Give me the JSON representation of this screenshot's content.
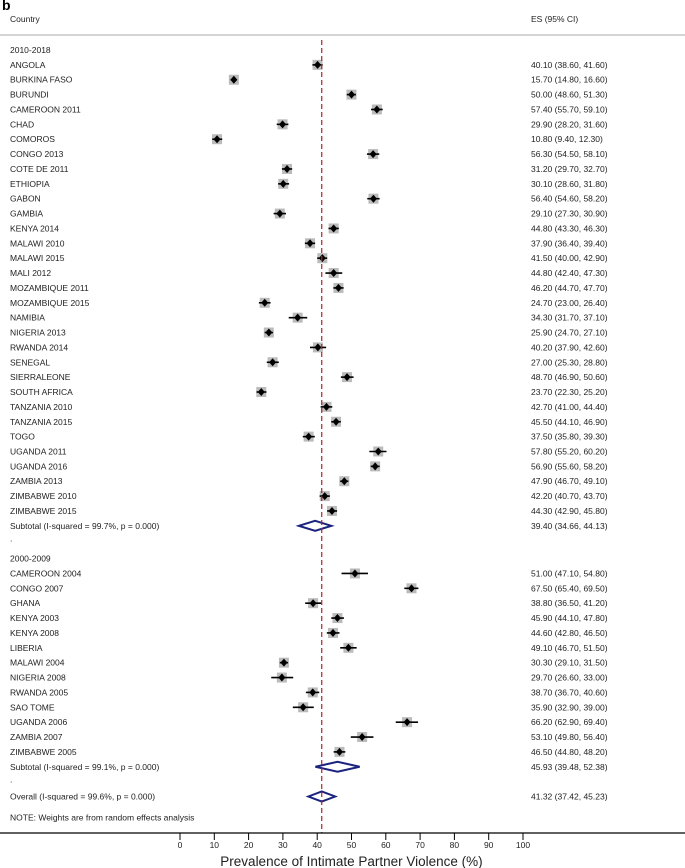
{
  "panel_label": "b",
  "chart_data": {
    "type": "forest",
    "header": {
      "study": "Country",
      "es": "ES (95% CI)"
    },
    "xlabel": "Prevalence of Intimate Partner Violence (%)",
    "xlim": [
      0,
      100
    ],
    "xticks": [
      0,
      10,
      20,
      30,
      40,
      50,
      60,
      70,
      80,
      90,
      100
    ],
    "reference_line": 41.32,
    "groups": [
      {
        "name": "2010-2018",
        "studies": [
          {
            "label": "ANGOLA",
            "es": 40.1,
            "lo": 38.6,
            "hi": 41.6,
            "text": "40.10 (38.60, 41.60)"
          },
          {
            "label": "BURKINA FASO",
            "es": 15.7,
            "lo": 14.8,
            "hi": 16.6,
            "text": "15.70 (14.80, 16.60)"
          },
          {
            "label": "BURUNDI",
            "es": 50.0,
            "lo": 48.6,
            "hi": 51.3,
            "text": "50.00 (48.60, 51.30)"
          },
          {
            "label": "CAMEROON 2011",
            "es": 57.4,
            "lo": 55.7,
            "hi": 59.1,
            "text": "57.40 (55.70, 59.10)"
          },
          {
            "label": "CHAD",
            "es": 29.9,
            "lo": 28.2,
            "hi": 31.6,
            "text": "29.90 (28.20, 31.60)"
          },
          {
            "label": "COMOROS",
            "es": 10.8,
            "lo": 9.4,
            "hi": 12.3,
            "text": "10.80 (9.40, 12.30)"
          },
          {
            "label": "CONGO 2013",
            "es": 56.3,
            "lo": 54.5,
            "hi": 58.1,
            "text": "56.30 (54.50, 58.10)"
          },
          {
            "label": "COTE DE 2011",
            "es": 31.2,
            "lo": 29.7,
            "hi": 32.7,
            "text": "31.20 (29.70, 32.70)"
          },
          {
            "label": "ETHIOPIA",
            "es": 30.1,
            "lo": 28.6,
            "hi": 31.8,
            "text": "30.10 (28.60, 31.80)"
          },
          {
            "label": "GABON",
            "es": 56.4,
            "lo": 54.6,
            "hi": 58.2,
            "text": "56.40 (54.60, 58.20)"
          },
          {
            "label": "GAMBIA",
            "es": 29.1,
            "lo": 27.3,
            "hi": 30.9,
            "text": "29.10 (27.30, 30.90)"
          },
          {
            "label": "KENYA 2014",
            "es": 44.8,
            "lo": 43.3,
            "hi": 46.3,
            "text": "44.80 (43.30, 46.30)"
          },
          {
            "label": "MALAWI 2010",
            "es": 37.9,
            "lo": 36.4,
            "hi": 39.4,
            "text": "37.90 (36.40, 39.40)"
          },
          {
            "label": "MALAWI 2015",
            "es": 41.5,
            "lo": 40.0,
            "hi": 42.9,
            "text": "41.50 (40.00, 42.90)"
          },
          {
            "label": "MALI 2012",
            "es": 44.8,
            "lo": 42.4,
            "hi": 47.3,
            "text": "44.80 (42.40, 47.30)"
          },
          {
            "label": "MOZAMBIQUE 2011",
            "es": 46.2,
            "lo": 44.7,
            "hi": 47.7,
            "text": "46.20 (44.70, 47.70)"
          },
          {
            "label": "MOZAMBIQUE 2015",
            "es": 24.7,
            "lo": 23.0,
            "hi": 26.4,
            "text": "24.70 (23.00, 26.40)"
          },
          {
            "label": "NAMIBIA",
            "es": 34.3,
            "lo": 31.7,
            "hi": 37.1,
            "text": "34.30 (31.70, 37.10)"
          },
          {
            "label": "NIGERIA 2013",
            "es": 25.9,
            "lo": 24.7,
            "hi": 27.1,
            "text": "25.90 (24.70, 27.10)"
          },
          {
            "label": "RWANDA 2014",
            "es": 40.2,
            "lo": 37.9,
            "hi": 42.6,
            "text": "40.20 (37.90, 42.60)"
          },
          {
            "label": "SENEGAL",
            "es": 27.0,
            "lo": 25.3,
            "hi": 28.8,
            "text": "27.00 (25.30, 28.80)"
          },
          {
            "label": "SIERRALEONE",
            "es": 48.7,
            "lo": 46.9,
            "hi": 50.6,
            "text": "48.70 (46.90, 50.60)"
          },
          {
            "label": "SOUTH AFRICA",
            "es": 23.7,
            "lo": 22.3,
            "hi": 25.2,
            "text": "23.70 (22.30, 25.20)"
          },
          {
            "label": "TANZANIA 2010",
            "es": 42.7,
            "lo": 41.0,
            "hi": 44.4,
            "text": "42.70 (41.00, 44.40)"
          },
          {
            "label": "TANZANIA 2015",
            "es": 45.5,
            "lo": 44.1,
            "hi": 46.9,
            "text": "45.50 (44.10, 46.90)"
          },
          {
            "label": "TOGO",
            "es": 37.5,
            "lo": 35.8,
            "hi": 39.3,
            "text": "37.50 (35.80, 39.30)"
          },
          {
            "label": "UGANDA 2011",
            "es": 57.8,
            "lo": 55.2,
            "hi": 60.2,
            "text": "57.80 (55.20, 60.20)"
          },
          {
            "label": "UGANDA 2016",
            "es": 56.9,
            "lo": 55.6,
            "hi": 58.2,
            "text": "56.90 (55.60, 58.20)"
          },
          {
            "label": "ZAMBIA 2013",
            "es": 47.9,
            "lo": 46.7,
            "hi": 49.1,
            "text": "47.90 (46.70, 49.10)"
          },
          {
            "label": "ZIMBABWE 2010",
            "es": 42.2,
            "lo": 40.7,
            "hi": 43.7,
            "text": "42.20 (40.70, 43.70)"
          },
          {
            "label": "ZIMBABWE 2015",
            "es": 44.3,
            "lo": 42.9,
            "hi": 45.8,
            "text": "44.30 (42.90, 45.80)"
          }
        ],
        "subtotal": {
          "label": "Subtotal  (I-squared = 99.7%, p = 0.000)",
          "es": 39.4,
          "lo": 34.66,
          "hi": 44.13,
          "text": "39.40 (34.66, 44.13)"
        }
      },
      {
        "name": "2000-2009",
        "studies": [
          {
            "label": "CAMEROON 2004",
            "es": 51.0,
            "lo": 47.1,
            "hi": 54.8,
            "text": "51.00 (47.10, 54.80)"
          },
          {
            "label": "CONGO 2007",
            "es": 67.5,
            "lo": 65.4,
            "hi": 69.5,
            "text": "67.50 (65.40, 69.50)"
          },
          {
            "label": "GHANA",
            "es": 38.8,
            "lo": 36.5,
            "hi": 41.2,
            "text": "38.80 (36.50, 41.20)"
          },
          {
            "label": "KENYA 2003",
            "es": 45.9,
            "lo": 44.1,
            "hi": 47.8,
            "text": "45.90 (44.10, 47.80)"
          },
          {
            "label": "KENYA 2008",
            "es": 44.6,
            "lo": 42.8,
            "hi": 46.5,
            "text": "44.60 (42.80, 46.50)"
          },
          {
            "label": "LIBERIA",
            "es": 49.1,
            "lo": 46.7,
            "hi": 51.5,
            "text": "49.10 (46.70, 51.50)"
          },
          {
            "label": "MALAWI 2004",
            "es": 30.3,
            "lo": 29.1,
            "hi": 31.5,
            "text": "30.30 (29.10, 31.50)"
          },
          {
            "label": "NIGERIA 2008",
            "es": 29.7,
            "lo": 26.6,
            "hi": 33.0,
            "text": "29.70 (26.60, 33.00)"
          },
          {
            "label": "RWANDA 2005",
            "es": 38.7,
            "lo": 36.7,
            "hi": 40.6,
            "text": "38.70 (36.70, 40.60)"
          },
          {
            "label": "SAO TOME",
            "es": 35.9,
            "lo": 32.9,
            "hi": 39.0,
            "text": "35.90 (32.90, 39.00)"
          },
          {
            "label": "UGANDA 2006",
            "es": 66.2,
            "lo": 62.9,
            "hi": 69.4,
            "text": "66.20 (62.90, 69.40)"
          },
          {
            "label": "ZAMBIA 2007",
            "es": 53.1,
            "lo": 49.8,
            "hi": 56.4,
            "text": "53.10 (49.80, 56.40)"
          },
          {
            "label": "ZIMBABWE 2005",
            "es": 46.5,
            "lo": 44.8,
            "hi": 48.2,
            "text": "46.50 (44.80, 48.20)"
          }
        ],
        "subtotal": {
          "label": "Subtotal  (I-squared = 99.1%, p = 0.000)",
          "es": 45.93,
          "lo": 39.48,
          "hi": 52.38,
          "text": "45.93 (39.48, 52.38)"
        }
      }
    ],
    "overall": {
      "label": "Overall  (I-squared = 99.6%, p = 0.000)",
      "es": 41.32,
      "lo": 37.42,
      "hi": 45.23,
      "text": "41.32 (37.42, 45.23)"
    },
    "note": "NOTE: Weights are from random effects analysis",
    "colors": {
      "ref_line": "#b22222",
      "diamond": "#1a237e",
      "box": "#bbbbbb",
      "point": "#000000"
    }
  }
}
